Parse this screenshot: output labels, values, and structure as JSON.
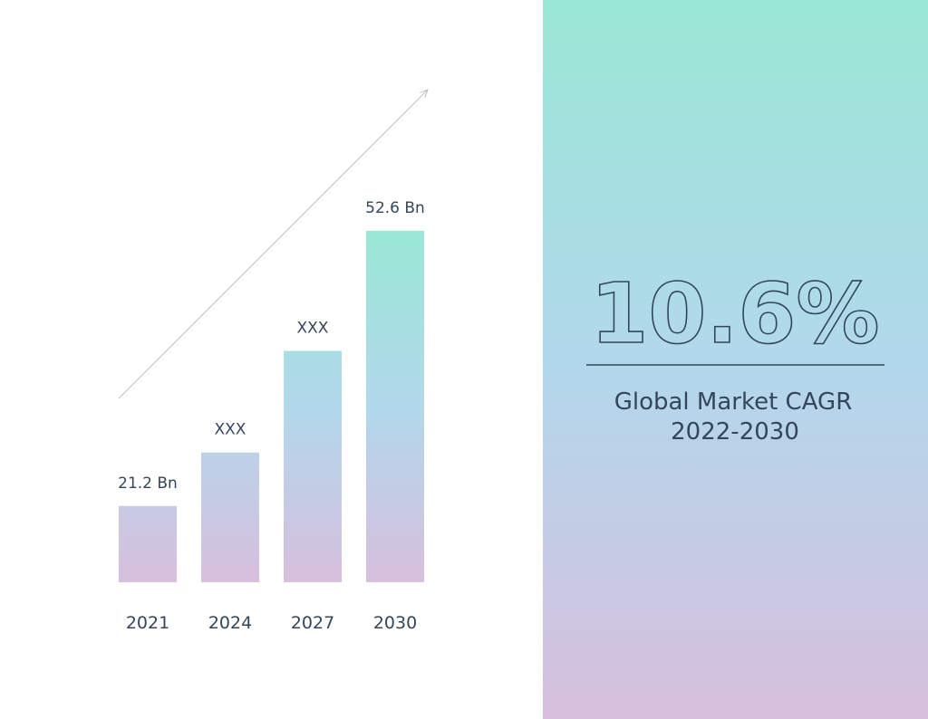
{
  "chart_data": {
    "type": "bar",
    "categories": [
      "2021",
      "2024",
      "2027",
      "2030"
    ],
    "values": [
      21.2,
      27.3,
      38.9,
      52.6
    ],
    "value_labels": [
      "21.2 Bn",
      "XXX",
      "XXX",
      "52.6 Bn"
    ],
    "gradient": [
      "#9be8d6",
      "#b2d8ec",
      "#d7bfdd"
    ],
    "ylim": [
      12.5,
      62.5
    ]
  },
  "highlight": {
    "text": "10.6%",
    "caption": [
      "Global Market CAGR",
      "2022-2030"
    ]
  }
}
